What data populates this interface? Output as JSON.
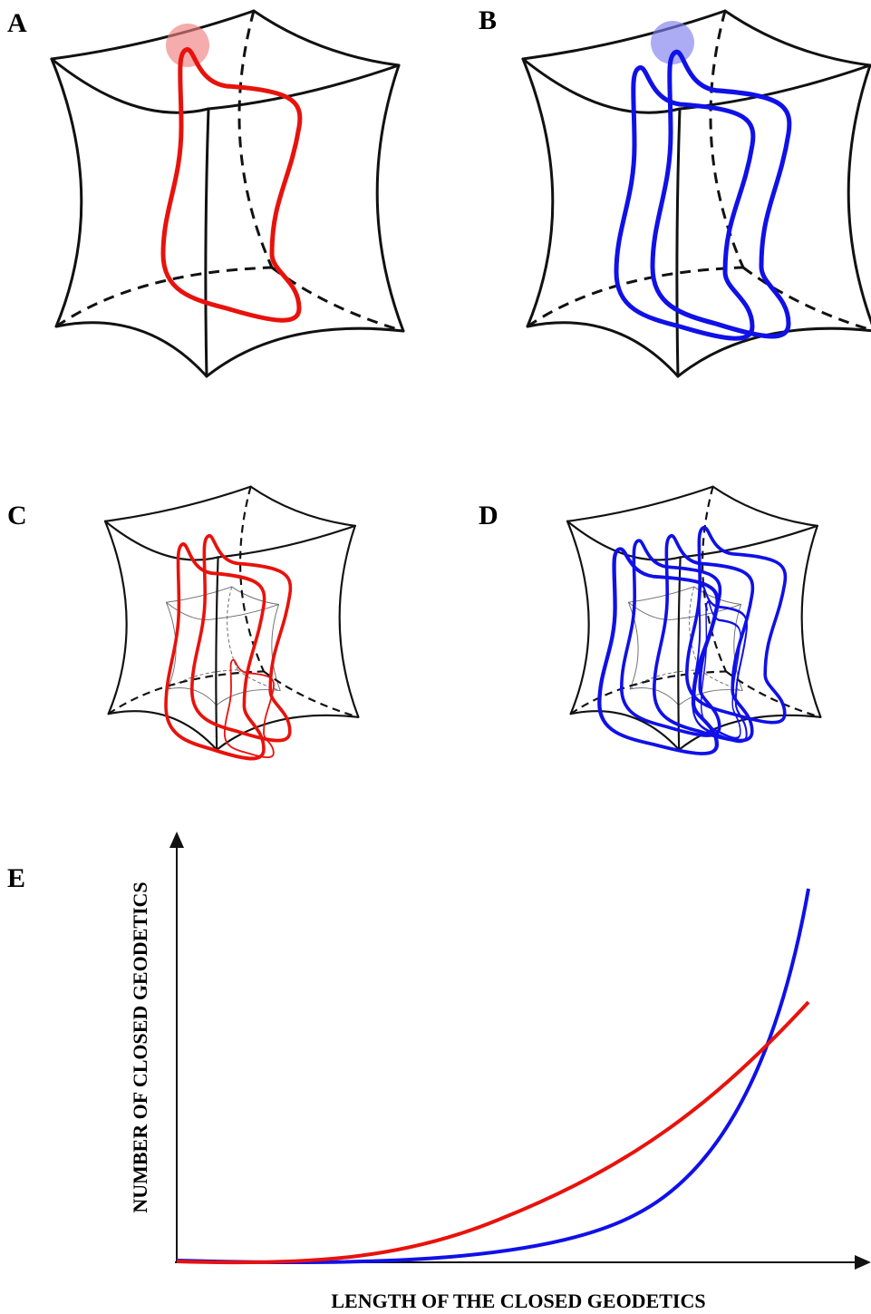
{
  "panel_labels": [
    "A",
    "B",
    "C",
    "D",
    "E"
  ],
  "plot": {
    "x_label": "LENGTH OF THE CLOSED GEODETICS",
    "y_label": "NUMBER OF CLOSED GEODETICS"
  }
}
